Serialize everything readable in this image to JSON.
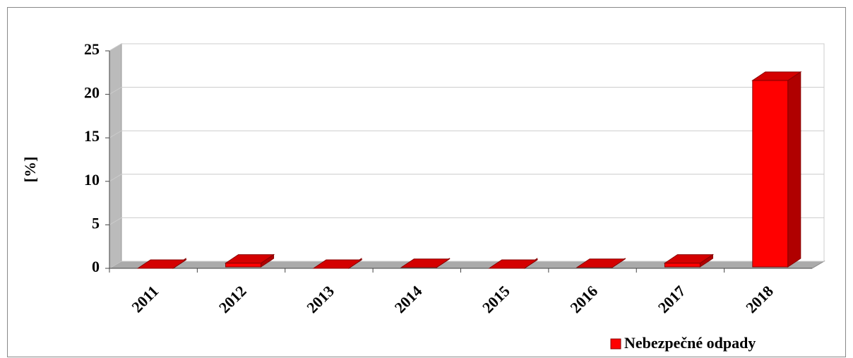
{
  "chart_data": {
    "type": "bar3d",
    "y_label": "[%]",
    "categories": [
      "2011",
      "2012",
      "2013",
      "2014",
      "2015",
      "2016",
      "2017",
      "2018"
    ],
    "series": [
      {
        "name": "Nebezpečné odpady",
        "color": "#ff0000",
        "values": [
          0,
          0.6,
          0,
          0.1,
          0,
          0.1,
          0.6,
          21.6
        ]
      }
    ],
    "ylim": [
      0,
      25
    ],
    "yticks": [
      0,
      5,
      10,
      15,
      20,
      25
    ],
    "grid": true,
    "legend": "bottom-right"
  }
}
